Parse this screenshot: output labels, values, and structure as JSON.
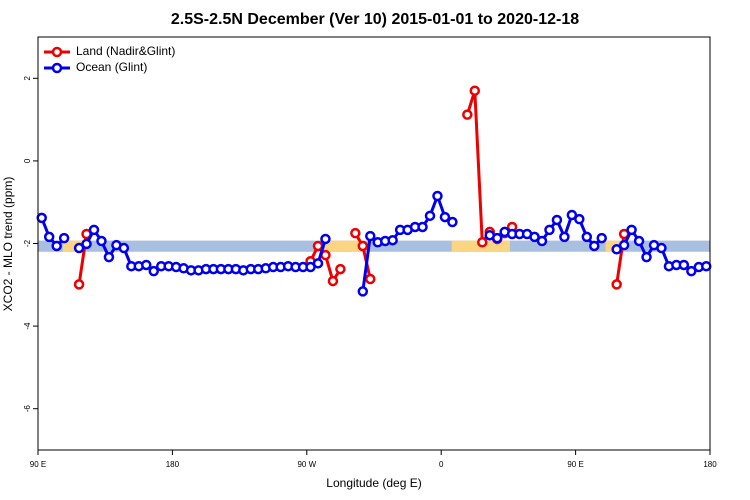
{
  "chart_data": {
    "type": "line",
    "title": "2.5S-2.5N December (Ver 10)   2015-01-01 to 2020-12-18",
    "xlabel": "Longitude (deg E)",
    "ylabel": "XCO2 - MLO trend (ppm)",
    "xlim": [
      90,
      540
    ],
    "ylim": [
      -7,
      3
    ],
    "xticks": [
      {
        "value": 90,
        "label": "90 E"
      },
      {
        "value": 180,
        "label": "180"
      },
      {
        "value": 270,
        "label": "90 W"
      },
      {
        "value": 360,
        "label": "0"
      },
      {
        "value": 450,
        "label": "90 E"
      },
      {
        "value": 540,
        "label": "180"
      }
    ],
    "yticks": [
      -6,
      -4,
      -2,
      0,
      2
    ],
    "legend": "top-left",
    "band": {
      "y": [
        -2.2,
        -1.93
      ],
      "color": "#a9bfe0"
    },
    "land_bands": {
      "color": "#fbd581",
      "x": [
        [
          106.7,
          121.5
        ],
        [
          282,
          309
        ],
        [
          367,
          406
        ],
        [
          470,
          483
        ]
      ]
    },
    "x": [
      92.5,
      97.5,
      102.5,
      107.5,
      112.5,
      117.5,
      122.5,
      127.5,
      132.5,
      137.5,
      142.5,
      147.5,
      152.5,
      157.5,
      162.5,
      167.5,
      172.5,
      177.5,
      182.5,
      187.5,
      192.5,
      197.5,
      202.5,
      207.5,
      212.5,
      217.5,
      222.5,
      227.5,
      232.5,
      237.5,
      242.5,
      247.5,
      252.5,
      257.5,
      262.5,
      267.5,
      272.5,
      277.5,
      282.5,
      287.5,
      292.5,
      297.5,
      302.5,
      307.5,
      312.5,
      317.5,
      322.5,
      327.5,
      332.5,
      337.5,
      342.5,
      347.5,
      352.5,
      357.5,
      362.5,
      367.5,
      372.5,
      377.5,
      382.5,
      387.5,
      392.5,
      397.5,
      402.5,
      407.5,
      412.5,
      417.5,
      422.5,
      427.5,
      432.5,
      437.5,
      442.5,
      447.5,
      452.5,
      457.5,
      462.5,
      467.5,
      472.5,
      477.5,
      482.5,
      487.5,
      492.5,
      497.5,
      502.5,
      507.5,
      512.5,
      517.5,
      522.5,
      527.5,
      532.5,
      537.5
    ],
    "series": [
      {
        "name": "Land (Nadir&Glint)",
        "color": "#ee0000",
        "values": [
          null,
          null,
          null,
          null,
          null,
          -2.99,
          -1.77,
          null,
          null,
          null,
          null,
          null,
          null,
          null,
          null,
          null,
          null,
          null,
          null,
          null,
          null,
          null,
          null,
          null,
          null,
          null,
          null,
          null,
          null,
          null,
          null,
          null,
          null,
          null,
          null,
          null,
          -2.43,
          -2.06,
          -2.28,
          -2.91,
          -2.62,
          null,
          -1.75,
          -2.06,
          -2.86,
          null,
          null,
          null,
          null,
          null,
          null,
          null,
          null,
          null,
          null,
          null,
          null,
          1.12,
          1.7,
          -1.97,
          -1.72,
          -1.89,
          -1.75,
          -1.6,
          null,
          null,
          null,
          null,
          null,
          null,
          null,
          null,
          null,
          null,
          null,
          null,
          null,
          -2.99,
          -1.77,
          null,
          null,
          null,
          null,
          null,
          null,
          null,
          null,
          null,
          null,
          null
        ]
      },
      {
        "name": "Ocean (Glint)",
        "color": "#0000ee",
        "values": [
          -1.38,
          -1.84,
          -2.06,
          -1.87,
          null,
          -2.11,
          -2.01,
          -1.67,
          -1.94,
          -2.33,
          -2.04,
          -2.11,
          -2.55,
          -2.55,
          -2.52,
          -2.67,
          -2.55,
          -2.55,
          -2.57,
          -2.6,
          -2.65,
          -2.65,
          -2.62,
          -2.62,
          -2.62,
          -2.62,
          -2.62,
          -2.65,
          -2.62,
          -2.62,
          -2.6,
          -2.57,
          -2.57,
          -2.55,
          -2.57,
          -2.57,
          -2.57,
          -2.48,
          -1.89,
          null,
          null,
          null,
          null,
          -3.16,
          -1.82,
          -1.97,
          -1.94,
          -1.92,
          -1.67,
          -1.67,
          -1.6,
          -1.6,
          -1.33,
          -0.85,
          -1.36,
          -1.48,
          null,
          null,
          null,
          null,
          -1.8,
          -1.87,
          -1.72,
          -1.77,
          -1.77,
          -1.77,
          -1.84,
          -1.94,
          -1.67,
          -1.43,
          -1.84,
          -1.31,
          -1.41,
          -1.84,
          -2.06,
          -1.87,
          null,
          -2.14,
          -2.04,
          -1.67,
          -1.94,
          -2.33,
          -2.04,
          -2.11,
          -2.55,
          -2.52,
          -2.52,
          -2.67,
          -2.57,
          -2.55
        ]
      }
    ]
  }
}
